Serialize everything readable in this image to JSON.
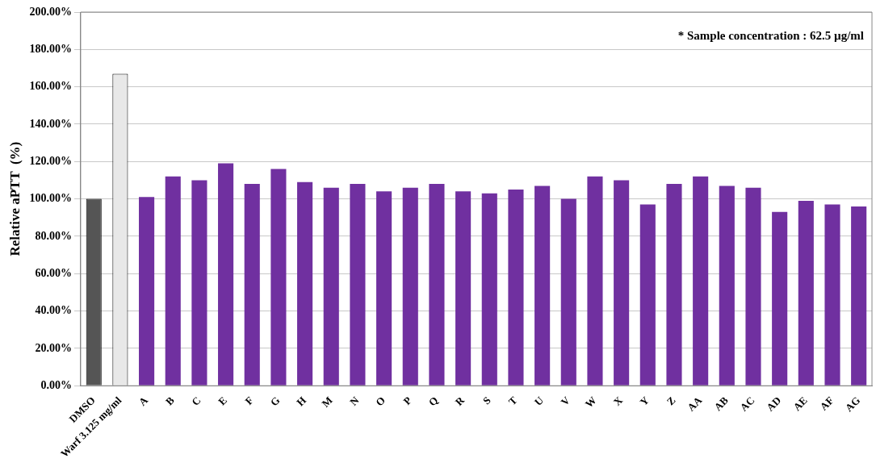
{
  "chart_data": {
    "type": "bar",
    "ylabel": "Relative aPTT  (%)",
    "annotations": [
      "* Sample concentration : 62.5 µg/ml"
    ],
    "categories": [
      "DMSO",
      "Warf 3.125 mg/ml",
      "A",
      "B",
      "C",
      "E",
      "F",
      "G",
      "H",
      "M",
      "N",
      "O",
      "P",
      "Q",
      "R",
      "S",
      "T",
      "U",
      "V",
      "W",
      "X",
      "Y",
      "Z",
      "AA",
      "AB",
      "AC",
      "AD",
      "AE",
      "AF",
      "AG"
    ],
    "values": [
      100,
      167,
      101,
      112,
      110,
      119,
      108,
      116,
      109,
      106,
      108,
      104,
      106,
      108,
      104,
      103,
      105,
      107,
      100,
      112,
      110,
      97,
      108,
      112,
      107,
      106,
      93,
      99,
      97,
      96
    ],
    "colors": [
      "#555555",
      "#e8e8e8",
      "#7030a0",
      "#7030a0",
      "#7030a0",
      "#7030a0",
      "#7030a0",
      "#7030a0",
      "#7030a0",
      "#7030a0",
      "#7030a0",
      "#7030a0",
      "#7030a0",
      "#7030a0",
      "#7030a0",
      "#7030a0",
      "#7030a0",
      "#7030a0",
      "#7030a0",
      "#7030a0",
      "#7030a0",
      "#7030a0",
      "#7030a0",
      "#7030a0",
      "#7030a0",
      "#7030a0",
      "#7030a0",
      "#7030a0",
      "#7030a0",
      "#7030a0"
    ],
    "ylim": [
      0,
      200
    ],
    "yticks": [
      {
        "value": 0,
        "label": "0.00%"
      },
      {
        "value": 20,
        "label": "20.00%"
      },
      {
        "value": 40,
        "label": "40.00%"
      },
      {
        "value": 60,
        "label": "60.00%"
      },
      {
        "value": 80,
        "label": "80.00%"
      },
      {
        "value": 100,
        "label": "100.00%"
      },
      {
        "value": 120,
        "label": "120.00%"
      },
      {
        "value": 140,
        "label": "140.00%"
      },
      {
        "value": 160,
        "label": "160.00%"
      },
      {
        "value": 180,
        "label": "180.00%"
      },
      {
        "value": 200,
        "label": "200.00%"
      }
    ],
    "grid": "y",
    "legend": false
  }
}
